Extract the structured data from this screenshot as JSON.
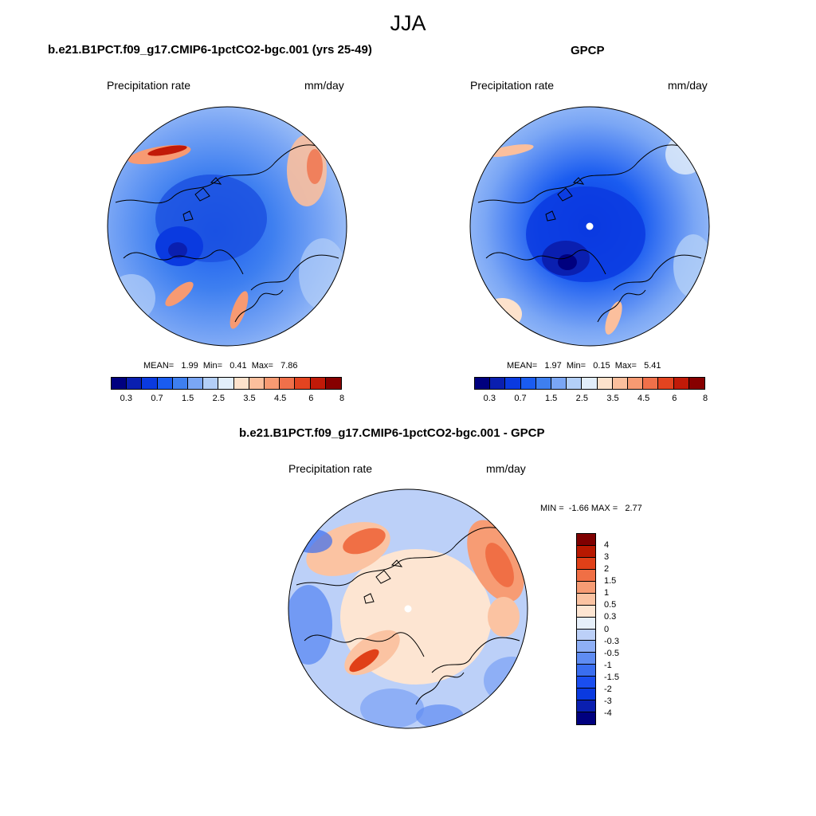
{
  "figure": {
    "season": "JJA"
  },
  "panels": {
    "model": {
      "title": "b.e21.B1PCT.f09_g17.CMIP6-1pctCO2-bgc.001 (yrs 25-49)",
      "variable": "Precipitation rate",
      "units": "mm/day",
      "stats": "MEAN=   1.99  Min=   0.41  Max=   7.86",
      "mean": 1.99,
      "min": 0.41,
      "max": 7.86
    },
    "obs": {
      "title": "GPCP",
      "variable": "Precipitation rate",
      "units": "mm/day",
      "stats": "MEAN=   1.97  Min=   0.15  Max=   5.41",
      "mean": 1.97,
      "min": 0.15,
      "max": 5.41
    },
    "diff": {
      "title": "b.e21.B1PCT.f09_g17.CMIP6-1pctCO2-bgc.001 - GPCP",
      "variable": "Precipitation rate",
      "units": "mm/day",
      "stats": "MIN =  -1.66 MAX =   2.77",
      "min": -1.66,
      "max": 2.77
    }
  },
  "colorbars": {
    "precip": {
      "colors": [
        "#00007f",
        "#0a1fb0",
        "#0a3ae0",
        "#1a5cf0",
        "#3e7ff0",
        "#7aa6f5",
        "#b3cff8",
        "#e2eefa",
        "#fde2cc",
        "#fbbf9d",
        "#f79a72",
        "#f0704a",
        "#e34420",
        "#c11a08",
        "#870000"
      ],
      "tick_labels": [
        "0.3",
        "0.7",
        "1.5",
        "2.5",
        "3.5",
        "4.5",
        "6",
        "8"
      ]
    },
    "diff": {
      "colors": [
        "#00007f",
        "#0a1fb0",
        "#0a3ae0",
        "#1a4ef0",
        "#3a6ef0",
        "#5f8cf2",
        "#8eaff6",
        "#bcd0f8",
        "#e6effa",
        "#fde5d2",
        "#fbc3a2",
        "#f79c74",
        "#f06f45",
        "#e04018",
        "#b81800",
        "#7f0000"
      ],
      "tick_labels": [
        "-4",
        "-3",
        "-2",
        "-1.5",
        "-1",
        "-0.5",
        "-0.3",
        "0",
        "0.3",
        "0.5",
        "1",
        "1.5",
        "2",
        "3",
        "4"
      ]
    }
  }
}
